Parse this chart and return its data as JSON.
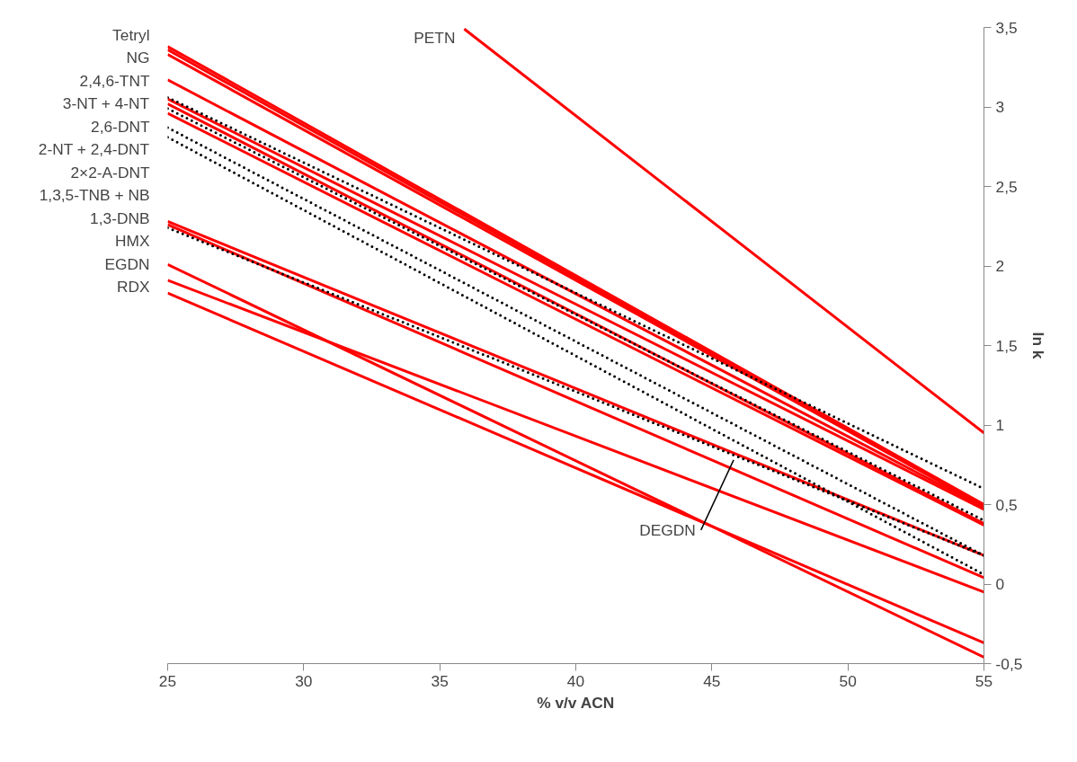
{
  "chart_data": {
    "type": "line",
    "xlabel": "% v/v ACN",
    "ylabel": "ln k",
    "x": [
      25,
      55
    ],
    "series": [
      {
        "color": "#ff0000",
        "line_style": "solid",
        "x": [
          35.9,
          55
        ],
        "values": [
          3.49,
          0.95
        ]
      },
      {
        "color": "#ff0000",
        "line_style": "solid",
        "values": [
          3.38,
          0.5
        ]
      },
      {
        "color": "#ff0000",
        "line_style": "solid",
        "values": [
          3.36,
          0.49
        ]
      },
      {
        "color": "#ff0000",
        "line_style": "solid",
        "values": [
          3.33,
          0.49
        ]
      },
      {
        "color": "#ff0000",
        "line_style": "solid",
        "values": [
          3.17,
          0.48
        ]
      },
      {
        "color": "#ff0000",
        "line_style": "solid",
        "values": [
          3.05,
          0.47
        ]
      },
      {
        "color": "#ff0000",
        "line_style": "solid",
        "values": [
          3.02,
          0.38
        ]
      },
      {
        "color": "#ff0000",
        "line_style": "solid",
        "values": [
          2.96,
          0.37
        ]
      },
      {
        "color": "#ff0000",
        "line_style": "solid",
        "values": [
          2.28,
          0.18
        ]
      },
      {
        "color": "#ff0000",
        "line_style": "solid",
        "values": [
          2.26,
          0.04
        ]
      },
      {
        "color": "#ff0000",
        "line_style": "solid",
        "values": [
          2.01,
          -0.46
        ]
      },
      {
        "color": "#ff0000",
        "line_style": "solid",
        "values": [
          1.91,
          -0.05
        ]
      },
      {
        "color": "#ff0000",
        "line_style": "solid",
        "values": [
          1.83,
          -0.37
        ]
      },
      {
        "color": "#000000",
        "line_style": "dotted",
        "values": [
          3.06,
          0.6
        ]
      },
      {
        "color": "#000000",
        "line_style": "dotted",
        "values": [
          2.99,
          0.4
        ]
      },
      {
        "color": "#000000",
        "line_style": "dotted",
        "values": [
          2.87,
          0.18
        ]
      },
      {
        "color": "#000000",
        "line_style": "dotted",
        "values": [
          2.81,
          0.06
        ]
      },
      {
        "color": "#000000",
        "line_style": "dotted",
        "values": [
          2.24,
          0.18
        ]
      }
    ],
    "xlim": [
      25,
      55
    ],
    "xticks": [
      25,
      30,
      35,
      40,
      45,
      50,
      55
    ],
    "ylim": [
      -0.5,
      3.5
    ],
    "yticks": [
      {
        "value": -0.5,
        "label": "-0,5"
      },
      0,
      {
        "value": 0.5,
        "label": "0,5"
      },
      1,
      {
        "value": 1.5,
        "label": "1,5"
      },
      2,
      {
        "value": 2.5,
        "label": "2,5"
      },
      3,
      {
        "value": 3.5,
        "label": "3,5"
      }
    ],
    "grid": false,
    "marker": "none",
    "annotations": [
      "Tetryl",
      "NG",
      "2,4,6-TNT",
      "3-NT + 4-NT",
      "2,6-DNT",
      "2-NT + 2,4-DNT",
      "2×2-A-DNT",
      "1,3,5-TNB + NB",
      "1,3-DNB",
      "HMX",
      "EGDN",
      "RDX",
      {
        "text": "PETN",
        "x": 35.9,
        "y": 3.49
      },
      {
        "text": "DEGDN",
        "x": 45.8,
        "y": 0.78
      }
    ]
  }
}
